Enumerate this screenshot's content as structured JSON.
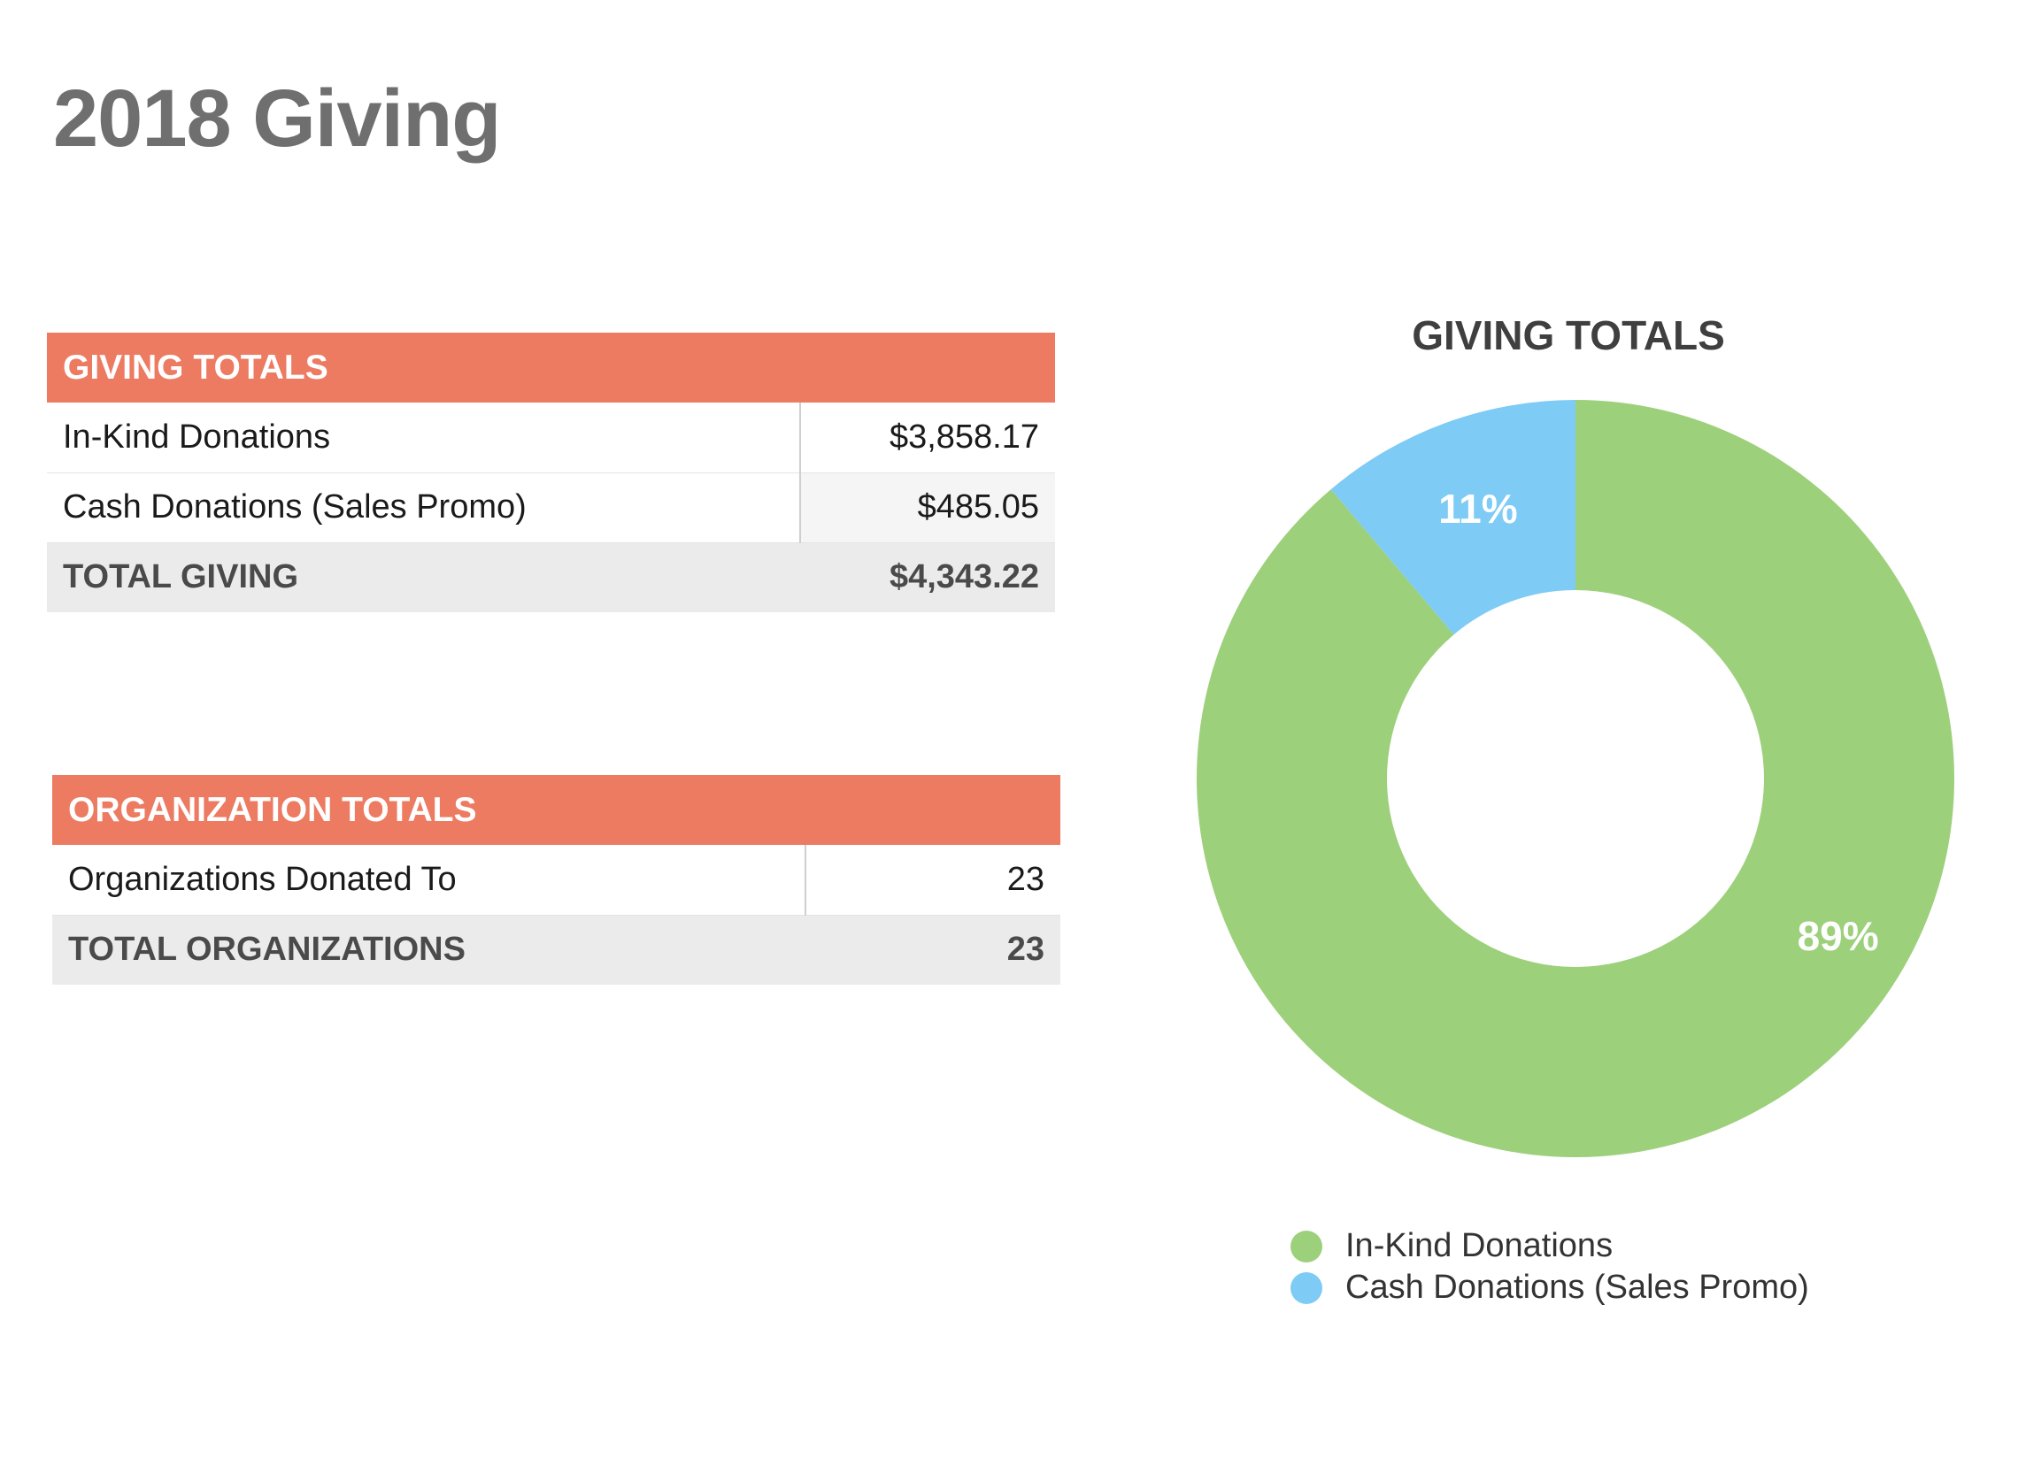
{
  "page": {
    "title": "2018 Giving"
  },
  "giving_table": {
    "header": "GIVING TOTALS",
    "rows": [
      {
        "label": "In-Kind Donations",
        "value": "$3,858.17"
      },
      {
        "label": "Cash Donations (Sales Promo)",
        "value": "$485.05"
      }
    ],
    "total": {
      "label": "TOTAL GIVING",
      "value": "$4,343.22"
    }
  },
  "org_table": {
    "header": "ORGANIZATION TOTALS",
    "rows": [
      {
        "label": "Organizations Donated To",
        "value": "23"
      }
    ],
    "total": {
      "label": "TOTAL ORGANIZATIONS",
      "value": "23"
    }
  },
  "colors": {
    "header": "#ec7b62",
    "in_kind": "#9dd07b",
    "cash": "#7ecbf5"
  },
  "chart_data": {
    "type": "pie",
    "variant": "donut",
    "title": "GIVING TOTALS",
    "categories": [
      "In-Kind Donations",
      "Cash Donations (Sales Promo)"
    ],
    "values": [
      3858.17,
      485.05
    ],
    "labels": [
      "89%",
      "11%"
    ],
    "colors": [
      "#9dd07b",
      "#7ecbf5"
    ],
    "legend_position": "bottom"
  }
}
